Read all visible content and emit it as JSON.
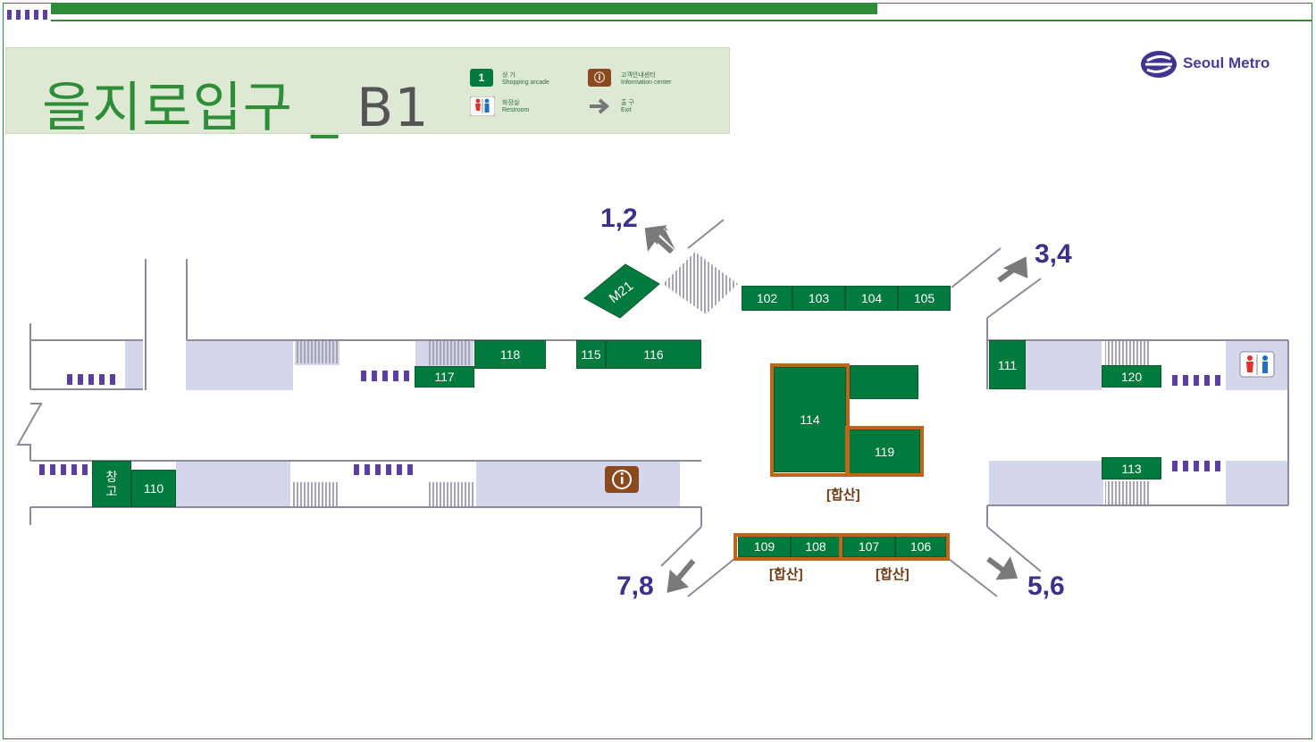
{
  "header": {
    "station": "을지로입구",
    "separator": " _ ",
    "level": "B1"
  },
  "legend": {
    "shop_icon": "1",
    "shop_ko": "상 가",
    "shop_en": "Shopping arcade",
    "info_ko": "고객안내센터",
    "info_en": "Information center",
    "restroom_ko": "화장실",
    "restroom_en": "Restroom",
    "exit_ko": "출 구",
    "exit_en": "Exit"
  },
  "brand": {
    "name": "Seoul Metro",
    "color": "#4c3a95"
  },
  "exits": {
    "e12": "1,2",
    "e34": "3,4",
    "e56": "5,6",
    "e78": "7,8"
  },
  "shops": {
    "s102": "102",
    "s103": "103",
    "s104": "104",
    "s105": "105",
    "s106": "106",
    "s107": "107",
    "s108": "108",
    "s109": "109",
    "s110": "110",
    "s111": "111",
    "s113": "113",
    "s114": "114",
    "s115": "115",
    "s116": "116",
    "s117": "117",
    "s118": "118",
    "s119": "119",
    "s120": "120",
    "m21": "M21",
    "storage": "창\n고"
  },
  "merged_label": "[합산]",
  "colors": {
    "shop": "#007a3d",
    "corridor": "#d4d7ec",
    "highlight": "#c0661b",
    "line": "#2f8d3a"
  },
  "icons": [
    "shop-icon",
    "info-icon",
    "restroom-icon",
    "exit-arrow-icon",
    "seoul-metro-logo-icon"
  ]
}
